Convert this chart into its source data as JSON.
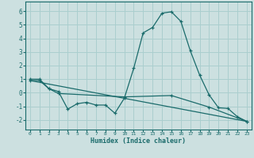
{
  "xlabel": "Humidex (Indice chaleur)",
  "bg_color": "#cce0e0",
  "grid_color": "#aacece",
  "line_color": "#1a6b6b",
  "xlim": [
    -0.5,
    23.5
  ],
  "ylim": [
    -2.7,
    6.7
  ],
  "yticks": [
    -2,
    -1,
    0,
    1,
    2,
    3,
    4,
    5,
    6
  ],
  "xticks": [
    0,
    1,
    2,
    3,
    4,
    5,
    6,
    7,
    8,
    9,
    10,
    11,
    12,
    13,
    14,
    15,
    16,
    17,
    18,
    19,
    20,
    21,
    22,
    23
  ],
  "series1_x": [
    0,
    1,
    2,
    3,
    4,
    5,
    6,
    7,
    8,
    9,
    10,
    11,
    12,
    13,
    14,
    15,
    16,
    17,
    18,
    19,
    20,
    21,
    22,
    23
  ],
  "series1_y": [
    1.0,
    1.0,
    0.3,
    0.1,
    -1.2,
    -0.8,
    -0.7,
    -0.9,
    -0.9,
    -1.5,
    -0.4,
    1.8,
    4.4,
    4.8,
    5.85,
    5.95,
    5.25,
    3.1,
    1.3,
    -0.15,
    -1.1,
    -1.15,
    -1.75,
    -2.1
  ],
  "series2_x": [
    0,
    1,
    2,
    3,
    10,
    15,
    19,
    23
  ],
  "series2_y": [
    0.9,
    0.9,
    0.3,
    -0.05,
    -0.3,
    -0.2,
    -1.05,
    -2.1
  ],
  "series3_x": [
    0,
    23
  ],
  "series3_y": [
    0.9,
    -2.1
  ]
}
